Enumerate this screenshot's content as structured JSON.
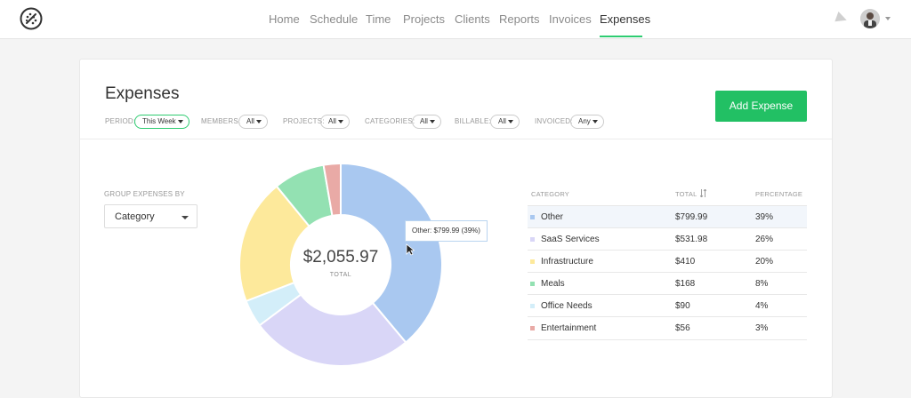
{
  "nav": {
    "items": [
      {
        "label": "Home"
      },
      {
        "label": "Schedule"
      },
      {
        "label": "Time"
      },
      {
        "label": "Projects"
      },
      {
        "label": "Clients"
      },
      {
        "label": "Reports"
      },
      {
        "label": "Invoices"
      },
      {
        "label": "Expenses",
        "active": true
      }
    ],
    "accent_color": "#2ecc71"
  },
  "page": {
    "title": "Expenses",
    "add_button": "Add Expense",
    "button_color": "#22c064"
  },
  "filters": {
    "period": {
      "label": "PERIOD:",
      "value": "This Week"
    },
    "members": {
      "label": "MEMBERS:",
      "value": "All"
    },
    "projects": {
      "label": "PROJECTS:",
      "value": "All"
    },
    "categories": {
      "label": "CATEGORIES:",
      "value": "All"
    },
    "billable": {
      "label": "BILLABLE:",
      "value": "All"
    },
    "invoiced": {
      "label": "INVOICED:",
      "value": "Any"
    }
  },
  "group": {
    "label": "GROUP EXPENSES BY",
    "value": "Category"
  },
  "chart_data": {
    "type": "pie",
    "donut": true,
    "center_value": "$2,055.97",
    "center_label": "TOTAL",
    "tooltip": "Other: $799.99 (39%)",
    "categories": [
      "Other",
      "SaaS Services",
      "Infrastructure",
      "Meals",
      "Office Needs",
      "Entertainment"
    ],
    "values": [
      799.99,
      531.98,
      410,
      168,
      90,
      56
    ],
    "slice_order_clockwise_from_top": [
      "Other",
      "SaaS Services",
      "Office Needs",
      "Infrastructure",
      "Meals",
      "Entertainment"
    ],
    "slice_colors": {
      "Other": "#a9c8f0",
      "SaaS Services": "#d9d6f7",
      "Office Needs": "#d3eef9",
      "Infrastructure": "#fde99b",
      "Meals": "#93e1b2",
      "Entertainment": "#e9aaa6"
    }
  },
  "table": {
    "headers": {
      "category": "CATEGORY",
      "total": "TOTAL",
      "percentage": "PERCENTAGE"
    },
    "rows": [
      {
        "category": "Other",
        "total": "$799.99",
        "percentage": "39%",
        "color": "#a9c8f0"
      },
      {
        "category": "SaaS Services",
        "total": "$531.98",
        "percentage": "26%",
        "color": "#d9d6f7"
      },
      {
        "category": "Infrastructure",
        "total": "$410",
        "percentage": "20%",
        "color": "#fde99b"
      },
      {
        "category": "Meals",
        "total": "$168",
        "percentage": "8%",
        "color": "#93e1b2"
      },
      {
        "category": "Office Needs",
        "total": "$90",
        "percentage": "4%",
        "color": "#d3eef9"
      },
      {
        "category": "Entertainment",
        "total": "$56",
        "percentage": "3%",
        "color": "#e9aaa6"
      }
    ]
  }
}
